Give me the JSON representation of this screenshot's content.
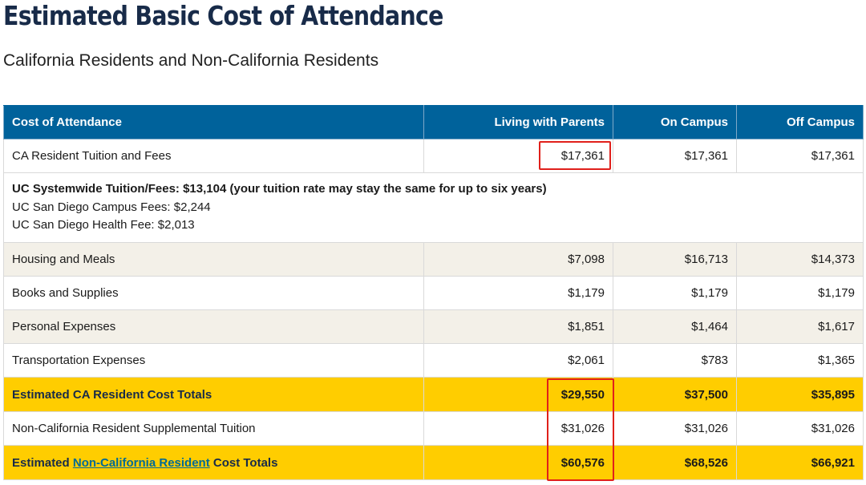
{
  "title": "Estimated Basic Cost of Attendance",
  "subtitle": "California Residents and Non-California Residents",
  "table": {
    "headers": [
      "Cost of Attendance",
      "Living with Parents",
      "On Campus",
      "Off Campus"
    ],
    "rows": [
      {
        "label": "CA Resident Tuition and Fees",
        "values": [
          "$17,361",
          "$17,361",
          "$17,361"
        ]
      },
      {
        "label": "Housing and Meals",
        "values": [
          "$7,098",
          "$16,713",
          "$14,373"
        ]
      },
      {
        "label": "Books and Supplies",
        "values": [
          "$1,179",
          "$1,179",
          "$1,179"
        ]
      },
      {
        "label": "Personal Expenses",
        "values": [
          "$1,851",
          "$1,464",
          "$1,617"
        ]
      },
      {
        "label": "Transportation Expenses",
        "values": [
          "$2,061",
          "$783",
          "$1,365"
        ]
      },
      {
        "label": "Estimated CA Resident Cost Totals",
        "values": [
          "$29,550",
          "$37,500",
          "$35,895"
        ]
      },
      {
        "label": "Non-California Resident Supplemental Tuition",
        "values": [
          "$31,026",
          "$31,026",
          "$31,026"
        ]
      },
      {
        "label_prefix": "Estimated ",
        "label_link": "Non-California Resident",
        "label_suffix": " Cost Totals",
        "values": [
          "$60,576",
          "$68,526",
          "$66,921"
        ]
      }
    ],
    "detail": {
      "bold_line": "UC Systemwide Tuition/Fees: $13,104 (your tuition rate may stay the same for up to six years)",
      "lines": [
        "UC San Diego Campus Fees: $2,244",
        "UC San Diego Health Fee: $2,013"
      ]
    }
  },
  "colors": {
    "header_bg": "#00629b",
    "title": "#182b49",
    "total_bg": "#ffcd00",
    "shaded_bg": "#f3f0e8",
    "highlight": "#e0201b",
    "link": "#006a96"
  }
}
